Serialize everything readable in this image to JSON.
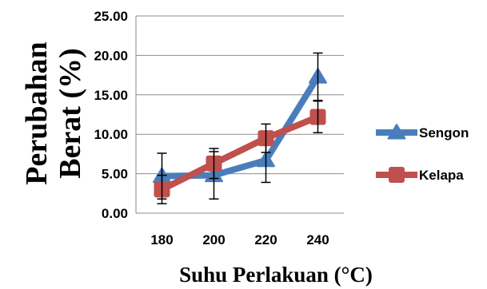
{
  "chart_data": {
    "type": "line",
    "x": [
      "180",
      "200",
      "220",
      "240"
    ],
    "ylabel_lines": [
      "Perubahan",
      "Berat (%)"
    ],
    "xlabel": "Suhu Perlakuan (°C)",
    "ylim": [
      0,
      25
    ],
    "yticks": [
      "0.00",
      "5.00",
      "10.00",
      "15.00",
      "20.00",
      "25.00"
    ],
    "ytick_values": [
      0,
      5,
      10,
      15,
      20,
      25
    ],
    "grid": "horizontal",
    "legend_position": "right",
    "series": [
      {
        "name": "Sengon",
        "color": "#4a7ebb",
        "marker": "triangle",
        "values": [
          4.7,
          4.8,
          6.7,
          17.3
        ],
        "error": [
          2.9,
          3.0,
          2.8,
          3.0
        ]
      },
      {
        "name": "Kelapa",
        "color": "#c0504d",
        "marker": "square",
        "values": [
          3.0,
          6.3,
          9.5,
          12.2
        ],
        "error": [
          1.8,
          1.9,
          1.8,
          2.0
        ]
      }
    ]
  }
}
